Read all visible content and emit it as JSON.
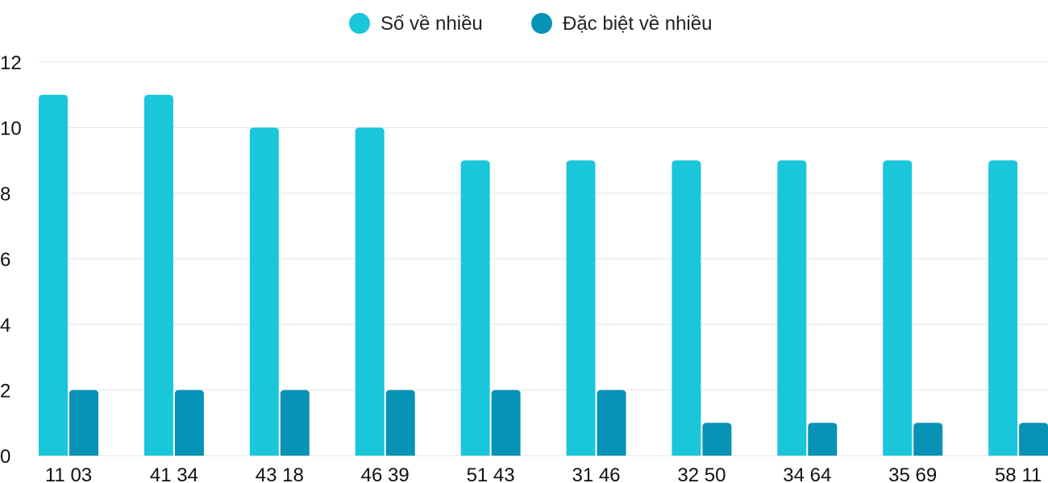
{
  "chart_data": {
    "type": "bar",
    "categories": [
      "11 03",
      "41 34",
      "43 18",
      "46 39",
      "51 43",
      "31 46",
      "32 50",
      "34 64",
      "35 69",
      "58 11"
    ],
    "series": [
      {
        "name": "Số về nhiều",
        "color": "#1ac6da",
        "values": [
          11,
          11,
          10,
          10,
          9,
          9,
          9,
          9,
          9,
          9
        ]
      },
      {
        "name": "Đặc biệt về nhiều",
        "color": "#0793b5",
        "values": [
          2,
          2,
          2,
          2,
          2,
          2,
          1,
          1,
          1,
          1
        ]
      }
    ],
    "yticks": [
      0,
      2,
      4,
      6,
      8,
      10,
      12
    ],
    "ylim": [
      0,
      12
    ],
    "grid": true,
    "legend_position": "top-center"
  }
}
